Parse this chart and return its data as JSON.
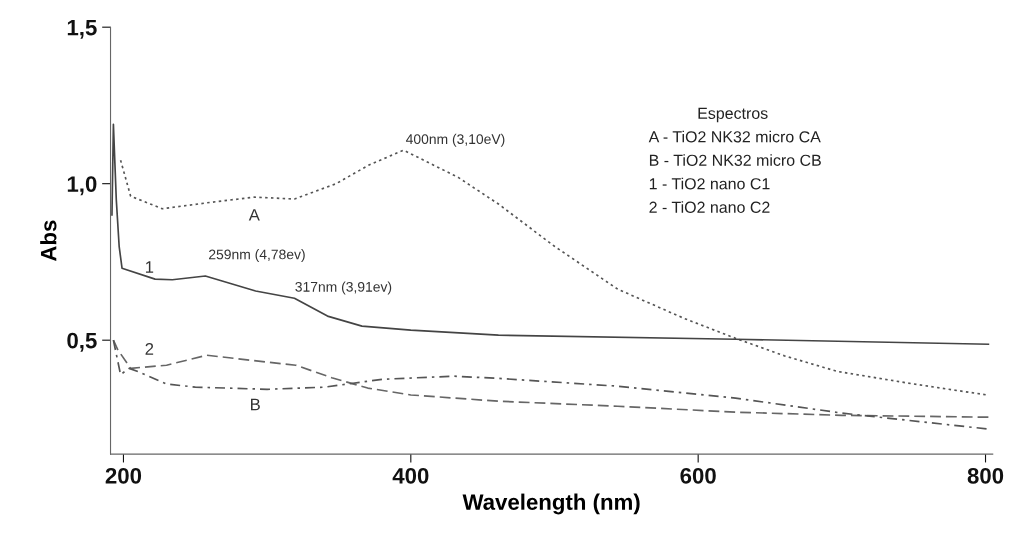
{
  "chart_data": {
    "type": "line",
    "xlabel": "Wavelength (nm)",
    "ylabel": "Abs",
    "xlim": [
      191,
      805
    ],
    "ylim": [
      0.136,
      1.5
    ],
    "xticks": [
      200,
      400,
      600,
      800
    ],
    "yticks": [
      {
        "value": 0.5,
        "label": "0,5"
      },
      {
        "value": 1.0,
        "label": "1,0"
      },
      {
        "value": 1.5,
        "label": "1,5"
      }
    ],
    "grid": false,
    "legend": false,
    "marker": "none",
    "series": [
      {
        "color": "#555555",
        "line_style": "dotted",
        "x": [
          198,
          205,
          227,
          260,
          291,
          319,
          348,
          371,
          395,
          433,
          461,
          500,
          544,
          590,
          626,
          660,
          697,
          750,
          801
        ],
        "values": [
          1.075,
          0.96,
          0.92,
          0.94,
          0.957,
          0.951,
          1.0,
          1.06,
          1.107,
          1.02,
          0.935,
          0.8,
          0.663,
          0.57,
          0.506,
          0.45,
          0.4,
          0.36,
          0.325
        ]
      },
      {
        "color": "#444444",
        "line_style": "solid",
        "x": [
          192,
          193,
          195,
          197,
          199,
          222,
          234,
          257,
          292,
          319,
          342,
          366,
          400,
          461,
          626,
          802
        ],
        "values": [
          0.9,
          1.19,
          0.95,
          0.8,
          0.73,
          0.695,
          0.693,
          0.705,
          0.657,
          0.634,
          0.577,
          0.545,
          0.532,
          0.516,
          0.503,
          0.487
        ]
      },
      {
        "color": "#666666",
        "line_style": "dashed",
        "x": [
          193,
          196,
          205,
          230,
          258,
          300,
          320,
          345,
          370,
          400,
          461,
          544,
          626,
          700,
          802
        ],
        "values": [
          0.5,
          0.47,
          0.41,
          0.42,
          0.452,
          0.43,
          0.42,
          0.38,
          0.347,
          0.325,
          0.305,
          0.289,
          0.27,
          0.26,
          0.254
        ]
      },
      {
        "color": "#555555",
        "line_style": "dashdot",
        "x": [
          193,
          198,
          204,
          210,
          230,
          250,
          300,
          340,
          380,
          430,
          461,
          544,
          626,
          700,
          802
        ],
        "values": [
          0.5,
          0.39,
          0.41,
          0.4,
          0.36,
          0.35,
          0.343,
          0.35,
          0.375,
          0.385,
          0.378,
          0.353,
          0.315,
          0.267,
          0.216
        ]
      }
    ],
    "annotations": [
      "A",
      "B",
      "1",
      "2",
      "400nm (3,10eV)",
      "259nm (4,78ev)",
      "317nm (3,91ev)",
      "Espectros",
      "A - TiO2 NK32 micro CA",
      "B - TiO2 NK32 micro CB",
      "1 - TiO2 nano C1",
      "2 - TiO2 nano C2"
    ]
  }
}
